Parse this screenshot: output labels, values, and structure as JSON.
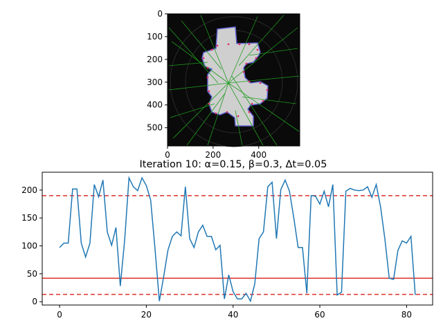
{
  "chart_data": [
    {
      "type": "image",
      "description_ticks": true,
      "x_ticks": [
        0,
        200,
        400
      ],
      "y_ticks": [
        0,
        100,
        200,
        300,
        400,
        500
      ],
      "xlim": [
        0,
        580
      ],
      "ylim": [
        580,
        0
      ],
      "colors": {
        "background": "#0a0a0a",
        "shape_fill": "#cfcfcf",
        "arrows": "#2ca02c",
        "contour": "#5b5bd6",
        "points": "#e0306a"
      }
    },
    {
      "type": "line",
      "title": "Iteration 10: α=0.15, β=0.3, Δt=0.05",
      "x_ticks": [
        0,
        20,
        40,
        60,
        80
      ],
      "y_ticks": [
        0,
        50,
        100,
        150,
        200
      ],
      "xlim": [
        -4,
        86
      ],
      "ylim": [
        -6,
        232
      ],
      "series": [
        {
          "color": "#1f77b4",
          "values": [
            97,
            105,
            105,
            202,
            202,
            105,
            80,
            105,
            210,
            188,
            218,
            125,
            101,
            133,
            28,
            110,
            222,
            206,
            199,
            222,
            208,
            182,
            95,
            1,
            45,
            93,
            117,
            125,
            118,
            206,
            113,
            97,
            125,
            137,
            117,
            117,
            93,
            101,
            5,
            48,
            18,
            5,
            5,
            15,
            1,
            32,
            113,
            125,
            206,
            214,
            113,
            201,
            218,
            198,
            150,
            97,
            97,
            15,
            190,
            189,
            175,
            198,
            170,
            210,
            12,
            17,
            198,
            203,
            200,
            199,
            200,
            206,
            187,
            210,
            170,
            112,
            42,
            40,
            92,
            109,
            105,
            117,
            12
          ]
        }
      ],
      "hlines": [
        {
          "y": 190,
          "style": "dashed",
          "color": "#e0302a"
        },
        {
          "y": 42,
          "style": "solid",
          "color": "#e0302a"
        },
        {
          "y": 13,
          "style": "dashed",
          "color": "#e0302a"
        }
      ]
    }
  ]
}
